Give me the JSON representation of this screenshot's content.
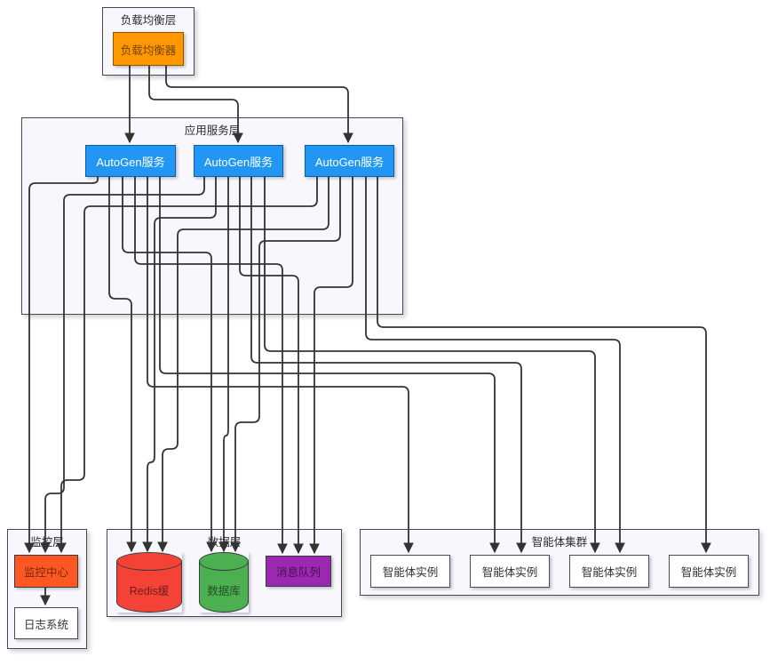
{
  "diagram": {
    "layers": {
      "lb": "负载均衡层",
      "app": "应用服务层",
      "monitor": "监控层",
      "data": "数据层",
      "agents": "智能体集群"
    },
    "nodes": {
      "load_balancer": "负载均衡器",
      "service1": "AutoGen服务",
      "service2": "AutoGen服务",
      "service3": "AutoGen服务",
      "monitor_center": "监控中心",
      "log_system": "日志系统",
      "redis_cache": "Redis缓",
      "database": "数据库",
      "message_queue": "消息队列",
      "agent1": "智能体实例",
      "agent2": "智能体实例",
      "agent3": "智能体实例",
      "agent4": "智能体实例"
    },
    "colors": {
      "load_balancer": "#FF9800",
      "service": "#2196F3",
      "monitor_center": "#FF5722",
      "redis_cache": "#F44336",
      "database": "#4CAF50",
      "message_queue": "#9C27B0",
      "edge": "#333333",
      "container_fill": "#f8f8fc"
    },
    "connections": [
      {
        "from": "load_balancer",
        "to": "service1"
      },
      {
        "from": "load_balancer",
        "to": "service2"
      },
      {
        "from": "load_balancer",
        "to": "service3"
      },
      {
        "from": "service1",
        "to": "monitor_center"
      },
      {
        "from": "service2",
        "to": "monitor_center"
      },
      {
        "from": "service3",
        "to": "monitor_center"
      },
      {
        "from": "service1",
        "to": "redis_cache"
      },
      {
        "from": "service2",
        "to": "redis_cache"
      },
      {
        "from": "service3",
        "to": "redis_cache"
      },
      {
        "from": "service1",
        "to": "database"
      },
      {
        "from": "service2",
        "to": "database"
      },
      {
        "from": "service3",
        "to": "database"
      },
      {
        "from": "service1",
        "to": "message_queue"
      },
      {
        "from": "service2",
        "to": "message_queue"
      },
      {
        "from": "service3",
        "to": "message_queue"
      },
      {
        "from": "service1",
        "to": "agent1"
      },
      {
        "from": "service1",
        "to": "agent2"
      },
      {
        "from": "service2",
        "to": "agent2"
      },
      {
        "from": "service2",
        "to": "agent3"
      },
      {
        "from": "service3",
        "to": "agent3"
      },
      {
        "from": "service3",
        "to": "agent4"
      },
      {
        "from": "monitor_center",
        "to": "log_system"
      }
    ]
  }
}
